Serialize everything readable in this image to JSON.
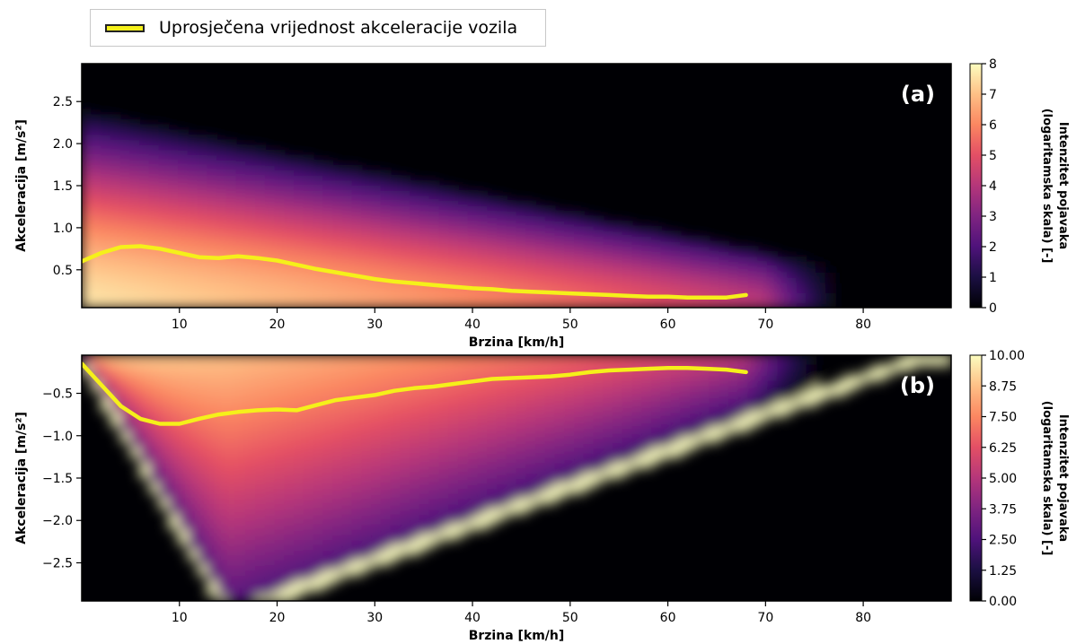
{
  "legend": {
    "label": "Uprosječena vrijednost akceleracije vozila",
    "color": "#f5f01a"
  },
  "chart_data": [
    {
      "type": "heatmap",
      "panel_label": "(a)",
      "xlabel": "Brzina [km/h]",
      "ylabel": "Akceleracija [m/s²]",
      "xlim": [
        0,
        89
      ],
      "ylim": [
        0.05,
        2.95
      ],
      "xticks": [
        10,
        20,
        30,
        40,
        50,
        60,
        70,
        80
      ],
      "yticks": [
        0.5,
        1.0,
        1.5,
        2.0,
        2.5
      ],
      "ytick_labels": [
        "0.5",
        "1.0",
        "1.5",
        "2.0",
        "2.5"
      ],
      "colorbar": {
        "label": "Intenzitet pojavaka (logaritamska skala) [-]",
        "label_lines": [
          "Intenzitet pojavaka",
          "(logaritamska skala) [-]"
        ],
        "range": [
          0,
          8
        ],
        "ticks": [
          0,
          1,
          2,
          3,
          4,
          5,
          6,
          7,
          8
        ],
        "tick_labels": [
          "0",
          "1",
          "2",
          "3",
          "4",
          "5",
          "6",
          "7",
          "8"
        ],
        "colormap": "magma"
      },
      "series": [
        {
          "name": "Uprosječena vrijednost akceleracije vozila",
          "color": "#f5f01a",
          "x": [
            0,
            2,
            4,
            6,
            8,
            10,
            12,
            14,
            16,
            18,
            20,
            22,
            24,
            26,
            28,
            30,
            32,
            34,
            36,
            38,
            40,
            42,
            44,
            46,
            48,
            50,
            52,
            54,
            56,
            58,
            60,
            62,
            64,
            66,
            68
          ],
          "y": [
            0.6,
            0.7,
            0.77,
            0.78,
            0.75,
            0.7,
            0.65,
            0.64,
            0.66,
            0.64,
            0.61,
            0.56,
            0.51,
            0.47,
            0.43,
            0.39,
            0.36,
            0.34,
            0.32,
            0.3,
            0.28,
            0.27,
            0.25,
            0.24,
            0.23,
            0.22,
            0.21,
            0.2,
            0.19,
            0.18,
            0.18,
            0.17,
            0.17,
            0.17,
            0.2
          ]
        }
      ]
    },
    {
      "type": "heatmap",
      "panel_label": "(b)",
      "xlabel": "Brzina [km/h]",
      "ylabel": "Akceleracija [m/s²]",
      "xlim": [
        0,
        89
      ],
      "ylim": [
        -2.95,
        -0.05
      ],
      "xticks": [
        10,
        20,
        30,
        40,
        50,
        60,
        70,
        80
      ],
      "yticks": [
        -2.5,
        -2.0,
        -1.5,
        -1.0,
        -0.5
      ],
      "ytick_labels": [
        "−2.5",
        "−2.0",
        "−1.5",
        "−1.0",
        "−0.5"
      ],
      "colorbar": {
        "label": "Intenzitet pojavaka (logaritamska skala) [-]",
        "label_lines": [
          "Intenzitet pojavaka",
          "(logaritamska skala) [-]"
        ],
        "range": [
          0,
          10
        ],
        "ticks": [
          0,
          1.25,
          2.5,
          3.75,
          5,
          6.25,
          7.5,
          8.75,
          10
        ],
        "tick_labels": [
          "0.00",
          "1.25",
          "2.50",
          "3.75",
          "5.00",
          "6.25",
          "7.50",
          "8.75",
          "10.00"
        ],
        "colormap": "magma"
      },
      "series": [
        {
          "name": "Uprosječena vrijednost akceleracije vozila",
          "color": "#f5f01a",
          "x": [
            0,
            2,
            4,
            6,
            8,
            10,
            12,
            14,
            16,
            18,
            20,
            22,
            24,
            26,
            28,
            30,
            32,
            34,
            36,
            38,
            40,
            42,
            44,
            46,
            48,
            50,
            52,
            54,
            56,
            58,
            60,
            62,
            64,
            66,
            68
          ],
          "y": [
            -0.15,
            -0.4,
            -0.65,
            -0.8,
            -0.86,
            -0.86,
            -0.8,
            -0.75,
            -0.72,
            -0.7,
            -0.69,
            -0.7,
            -0.64,
            -0.58,
            -0.55,
            -0.52,
            -0.47,
            -0.44,
            -0.42,
            -0.39,
            -0.36,
            -0.33,
            -0.32,
            -0.31,
            -0.3,
            -0.28,
            -0.25,
            -0.23,
            -0.22,
            -0.21,
            -0.2,
            -0.2,
            -0.21,
            -0.22,
            -0.25
          ]
        }
      ]
    }
  ]
}
